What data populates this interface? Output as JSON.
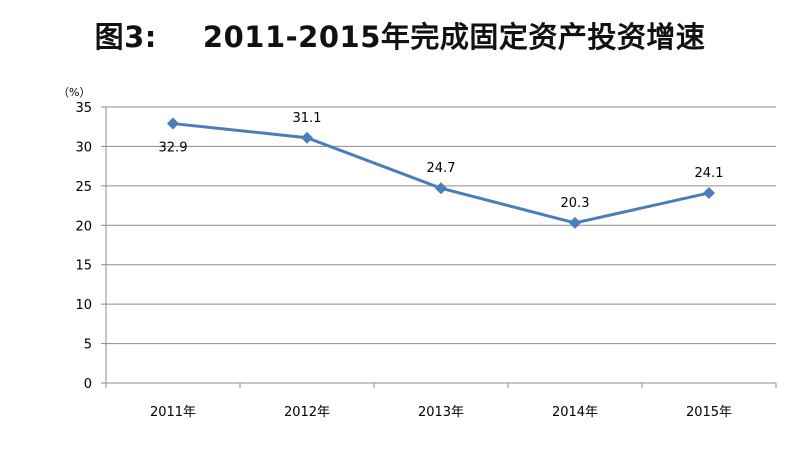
{
  "header": {
    "figure_label": "图3:",
    "title_text": "2011-2015年完成固定资产投资增速"
  },
  "chart_data": {
    "type": "line",
    "title": "2011-2015年完成固定资产投资增速",
    "y_unit": "（%）",
    "categories": [
      "2011年",
      "2012年",
      "2013年",
      "2014年",
      "2015年"
    ],
    "series": [
      {
        "values": [
          32.9,
          31.1,
          24.7,
          20.3,
          24.1
        ],
        "color": "#4a7ebb"
      }
    ],
    "data_labels": [
      "32.9",
      "31.1",
      "24.7",
      "20.3",
      "24.1"
    ],
    "ylim": [
      0,
      35
    ],
    "y_ticks": [
      0,
      5,
      10,
      15,
      20,
      25,
      30,
      35
    ],
    "grid": true,
    "marker": "diamond",
    "legend": "none"
  }
}
